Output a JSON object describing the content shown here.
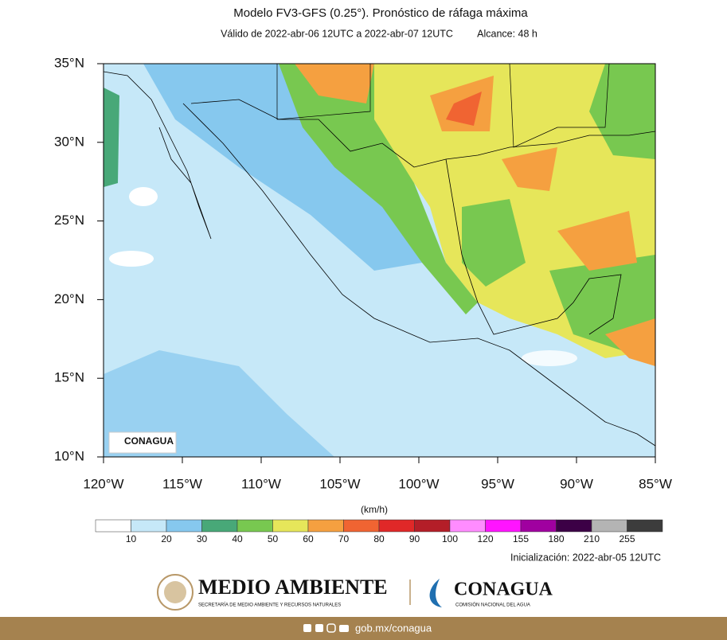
{
  "header": {
    "title": "Modelo FV3-GFS (0.25°). Pronóstico de ráfaga máxima",
    "subtitle": "Válido de 2022-abr-06 12UTC a 2022-abr-07 12UTC",
    "range": "Alcance: 48 h"
  },
  "map": {
    "lat_labels": [
      "35°N",
      "30°N",
      "25°N",
      "20°N",
      "15°N",
      "10°N"
    ],
    "lon_labels": [
      "120°W",
      "115°W",
      "110°W",
      "105°W",
      "100°W",
      "95°W",
      "90°W",
      "85°W"
    ],
    "watermark": "CONAGUA"
  },
  "colorbar": {
    "unit": "(km/h)",
    "ticks": [
      "10",
      "20",
      "30",
      "40",
      "50",
      "60",
      "70",
      "80",
      "90",
      "100",
      "120",
      "155",
      "180",
      "210",
      "255"
    ],
    "colors": [
      "#ffffff",
      "#c6e8f8",
      "#86c8ee",
      "#48a878",
      "#78c850",
      "#e6e65a",
      "#f5a040",
      "#f06432",
      "#e02828",
      "#b41e28",
      "#ff8cff",
      "#ff14ff",
      "#a000a0",
      "#3c0046",
      "#b4b4b4",
      "#3c3c3c"
    ]
  },
  "init": "Inicialización: 2022-abr-05 12UTC",
  "footer": {
    "brand": "MEDIO AMBIENTE",
    "brand_sub": "SECRETARÍA DE MEDIO AMBIENTE Y RECURSOS NATURALES",
    "agency": "CONAGUA",
    "agency_sub": "COMISIÓN NACIONAL DEL AGUA",
    "url": "gob.mx/conagua"
  }
}
